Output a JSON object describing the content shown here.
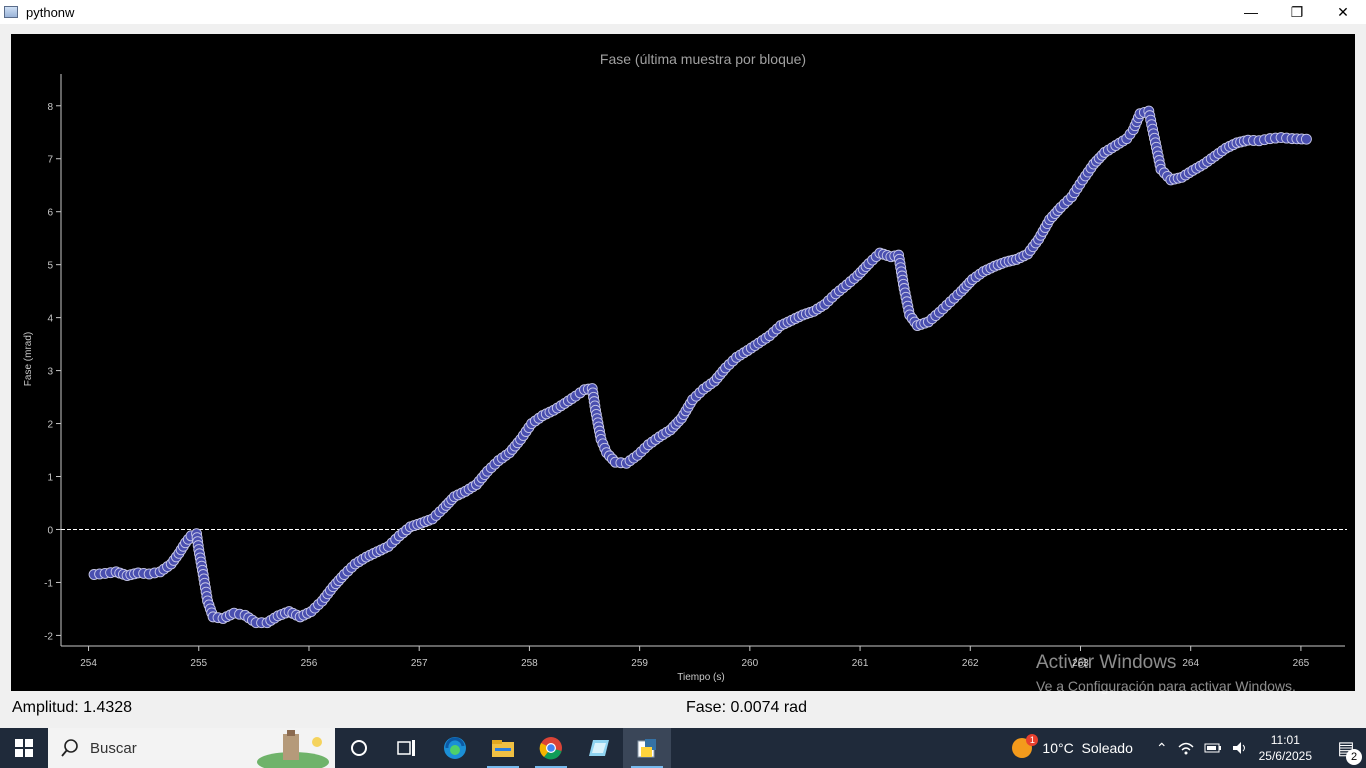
{
  "window": {
    "title": "pythonw",
    "controls": {
      "minimize": "—",
      "maximize": "❐",
      "close": "✕"
    }
  },
  "chart_data": {
    "type": "scatter",
    "title": "Fase (última muestra por bloque)",
    "xlabel": "Tiempo (s)",
    "ylabel": "Fase (mrad)",
    "xlim": [
      253.75,
      265.4
    ],
    "ylim": [
      -2.2,
      8.6
    ],
    "xticks": [
      254,
      255,
      256,
      257,
      258,
      259,
      260,
      261,
      262,
      263,
      264,
      265
    ],
    "yticks": [
      -2,
      -1,
      0,
      1,
      2,
      3,
      4,
      5,
      6,
      7,
      8
    ],
    "reference_line_y": 0,
    "marker_color": "#4a4fb0",
    "marker_edge": "#c8c8e8",
    "series": [
      {
        "values": [
          [
            254.05,
            -0.85
          ],
          [
            254.15,
            -0.83
          ],
          [
            254.25,
            -0.8
          ],
          [
            254.35,
            -0.87
          ],
          [
            254.45,
            -0.82
          ],
          [
            254.55,
            -0.84
          ],
          [
            254.65,
            -0.8
          ],
          [
            254.75,
            -0.65
          ],
          [
            254.82,
            -0.45
          ],
          [
            254.88,
            -0.25
          ],
          [
            254.93,
            -0.12
          ],
          [
            254.98,
            -0.08
          ],
          [
            255.0,
            -0.38
          ],
          [
            255.04,
            -0.85
          ],
          [
            255.08,
            -1.35
          ],
          [
            255.13,
            -1.65
          ],
          [
            255.22,
            -1.68
          ],
          [
            255.32,
            -1.58
          ],
          [
            255.42,
            -1.62
          ],
          [
            255.52,
            -1.76
          ],
          [
            255.62,
            -1.76
          ],
          [
            255.72,
            -1.63
          ],
          [
            255.82,
            -1.55
          ],
          [
            255.92,
            -1.65
          ],
          [
            256.02,
            -1.55
          ],
          [
            256.12,
            -1.35
          ],
          [
            256.22,
            -1.08
          ],
          [
            256.32,
            -0.85
          ],
          [
            256.42,
            -0.65
          ],
          [
            256.52,
            -0.52
          ],
          [
            256.62,
            -0.42
          ],
          [
            256.72,
            -0.32
          ],
          [
            256.82,
            -0.12
          ],
          [
            256.92,
            0.05
          ],
          [
            257.02,
            0.12
          ],
          [
            257.12,
            0.2
          ],
          [
            257.22,
            0.4
          ],
          [
            257.32,
            0.62
          ],
          [
            257.42,
            0.72
          ],
          [
            257.52,
            0.85
          ],
          [
            257.62,
            1.1
          ],
          [
            257.72,
            1.3
          ],
          [
            257.82,
            1.45
          ],
          [
            257.92,
            1.7
          ],
          [
            258.02,
            2.0
          ],
          [
            258.12,
            2.15
          ],
          [
            258.22,
            2.25
          ],
          [
            258.32,
            2.38
          ],
          [
            258.42,
            2.52
          ],
          [
            258.5,
            2.64
          ],
          [
            258.57,
            2.66
          ],
          [
            258.6,
            2.25
          ],
          [
            258.65,
            1.7
          ],
          [
            258.7,
            1.45
          ],
          [
            258.78,
            1.27
          ],
          [
            258.88,
            1.25
          ],
          [
            258.98,
            1.4
          ],
          [
            259.08,
            1.6
          ],
          [
            259.18,
            1.75
          ],
          [
            259.28,
            1.88
          ],
          [
            259.38,
            2.1
          ],
          [
            259.48,
            2.45
          ],
          [
            259.58,
            2.65
          ],
          [
            259.68,
            2.8
          ],
          [
            259.78,
            3.05
          ],
          [
            259.88,
            3.25
          ],
          [
            259.98,
            3.38
          ],
          [
            260.08,
            3.52
          ],
          [
            260.18,
            3.66
          ],
          [
            260.28,
            3.85
          ],
          [
            260.38,
            3.95
          ],
          [
            260.48,
            4.05
          ],
          [
            260.58,
            4.12
          ],
          [
            260.68,
            4.25
          ],
          [
            260.78,
            4.45
          ],
          [
            260.88,
            4.62
          ],
          [
            260.98,
            4.8
          ],
          [
            261.08,
            5.02
          ],
          [
            261.18,
            5.22
          ],
          [
            261.28,
            5.15
          ],
          [
            261.35,
            5.18
          ],
          [
            261.4,
            4.55
          ],
          [
            261.45,
            4.05
          ],
          [
            261.52,
            3.85
          ],
          [
            261.62,
            3.92
          ],
          [
            261.72,
            4.1
          ],
          [
            261.82,
            4.3
          ],
          [
            261.92,
            4.5
          ],
          [
            262.02,
            4.72
          ],
          [
            262.12,
            4.87
          ],
          [
            262.22,
            4.97
          ],
          [
            262.32,
            5.05
          ],
          [
            262.42,
            5.1
          ],
          [
            262.52,
            5.2
          ],
          [
            262.62,
            5.48
          ],
          [
            262.72,
            5.85
          ],
          [
            262.82,
            6.08
          ],
          [
            262.92,
            6.28
          ],
          [
            263.02,
            6.6
          ],
          [
            263.12,
            6.9
          ],
          [
            263.22,
            7.12
          ],
          [
            263.32,
            7.25
          ],
          [
            263.42,
            7.38
          ],
          [
            263.48,
            7.55
          ],
          [
            263.54,
            7.85
          ],
          [
            263.62,
            7.9
          ],
          [
            263.68,
            7.3
          ],
          [
            263.73,
            6.8
          ],
          [
            263.82,
            6.6
          ],
          [
            263.92,
            6.65
          ],
          [
            264.02,
            6.78
          ],
          [
            264.12,
            6.9
          ],
          [
            264.22,
            7.05
          ],
          [
            264.32,
            7.2
          ],
          [
            264.42,
            7.3
          ],
          [
            264.52,
            7.35
          ],
          [
            264.62,
            7.34
          ],
          [
            264.72,
            7.38
          ],
          [
            264.82,
            7.4
          ],
          [
            264.92,
            7.38
          ],
          [
            265.05,
            7.37
          ]
        ]
      }
    ]
  },
  "status": {
    "amplitude": "Amplitud: 1.4328",
    "phase": "Fase: 0.0074 rad"
  },
  "watermark": {
    "title": "Activar Windows",
    "subtitle": "Ve a Configuración para activar Windows."
  },
  "taskbar": {
    "search_placeholder": "Buscar",
    "weather": "10°C  Soleado",
    "weather_badge": "1",
    "time": "11:01",
    "date": "25/6/2025",
    "notifications_count": "2",
    "app_icons": [
      "cortana-icon",
      "task-view-icon",
      "edge-icon",
      "file-explorer-icon",
      "chrome-icon",
      "notepad-icon",
      "python-icon"
    ]
  }
}
